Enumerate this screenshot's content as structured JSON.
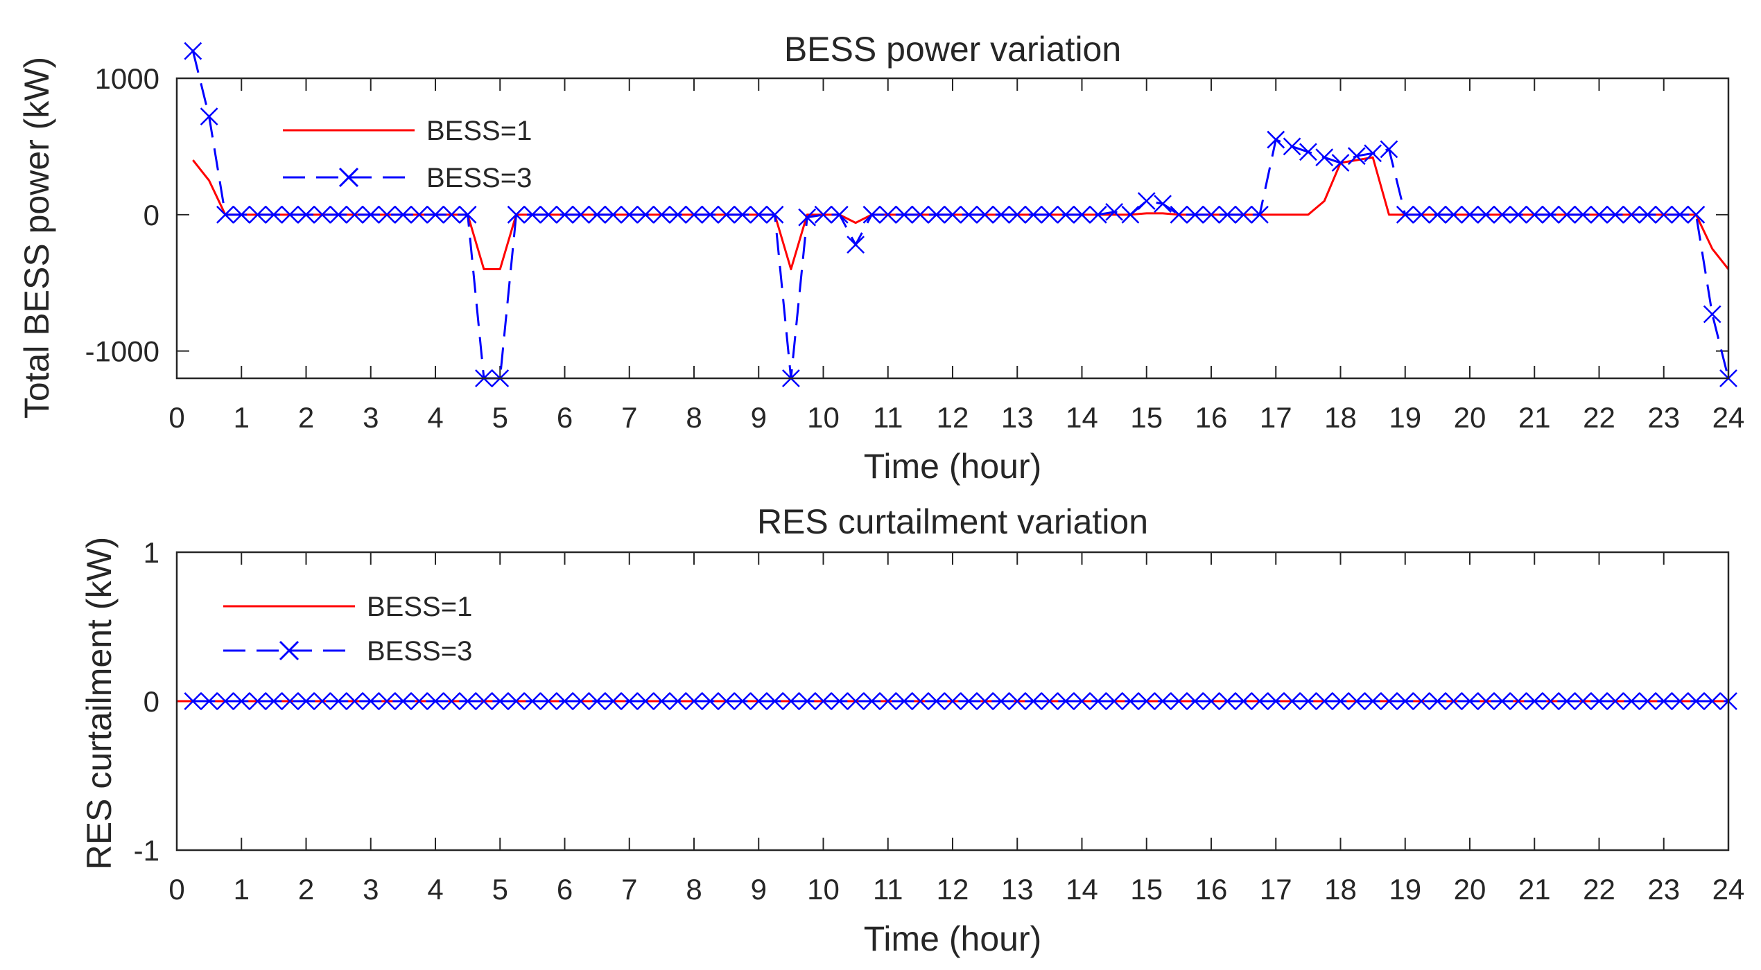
{
  "chart_data": [
    {
      "id": "bess",
      "type": "line",
      "title": "BESS power variation",
      "xlabel": "Time (hour)",
      "ylabel": "Total BESS power (kW)",
      "xlim": [
        0,
        24
      ],
      "ylim": [
        -1200,
        1000
      ],
      "xticks": [
        0,
        1,
        2,
        3,
        4,
        5,
        6,
        7,
        8,
        9,
        10,
        11,
        12,
        13,
        14,
        15,
        16,
        17,
        18,
        19,
        20,
        21,
        22,
        23,
        24
      ],
      "yticks": [
        -1000,
        0,
        1000
      ],
      "legend_position": "top-left",
      "grid": false,
      "series": [
        {
          "name": "BESS=1",
          "color": "#ff0000",
          "style": "solid",
          "marker": "none",
          "points": [
            [
              0.25,
              400
            ],
            [
              0.5,
              250
            ],
            [
              0.75,
              0
            ],
            [
              1,
              0
            ],
            [
              1.25,
              0
            ],
            [
              1.5,
              0
            ],
            [
              1.75,
              0
            ],
            [
              2,
              0
            ],
            [
              2.25,
              0
            ],
            [
              2.5,
              0
            ],
            [
              2.75,
              0
            ],
            [
              3,
              0
            ],
            [
              3.25,
              0
            ],
            [
              3.5,
              0
            ],
            [
              3.75,
              0
            ],
            [
              4,
              0
            ],
            [
              4.25,
              0
            ],
            [
              4.5,
              0
            ],
            [
              4.75,
              -400
            ],
            [
              5,
              -400
            ],
            [
              5.25,
              0
            ],
            [
              5.5,
              0
            ],
            [
              5.75,
              0
            ],
            [
              6,
              0
            ],
            [
              6.25,
              0
            ],
            [
              6.5,
              0
            ],
            [
              6.75,
              0
            ],
            [
              7,
              0
            ],
            [
              7.25,
              0
            ],
            [
              7.5,
              0
            ],
            [
              7.75,
              0
            ],
            [
              8,
              0
            ],
            [
              8.25,
              0
            ],
            [
              8.5,
              0
            ],
            [
              8.75,
              0
            ],
            [
              9,
              0
            ],
            [
              9.25,
              0
            ],
            [
              9.5,
              -400
            ],
            [
              9.75,
              0
            ],
            [
              10,
              0
            ],
            [
              10.25,
              0
            ],
            [
              10.5,
              -60
            ],
            [
              10.75,
              0
            ],
            [
              11,
              0
            ],
            [
              11.25,
              0
            ],
            [
              11.5,
              0
            ],
            [
              11.75,
              0
            ],
            [
              12,
              0
            ],
            [
              12.25,
              0
            ],
            [
              12.5,
              0
            ],
            [
              12.75,
              0
            ],
            [
              13,
              0
            ],
            [
              13.25,
              0
            ],
            [
              13.5,
              0
            ],
            [
              13.75,
              0
            ],
            [
              14,
              0
            ],
            [
              14.25,
              0
            ],
            [
              14.5,
              0
            ],
            [
              14.75,
              0
            ],
            [
              15,
              10
            ],
            [
              15.25,
              10
            ],
            [
              15.5,
              0
            ],
            [
              15.75,
              0
            ],
            [
              16,
              0
            ],
            [
              16.25,
              0
            ],
            [
              16.5,
              0
            ],
            [
              16.75,
              0
            ],
            [
              17,
              0
            ],
            [
              17.25,
              0
            ],
            [
              17.5,
              0
            ],
            [
              17.75,
              100
            ],
            [
              18,
              380
            ],
            [
              18.25,
              400
            ],
            [
              18.5,
              420
            ],
            [
              18.75,
              0
            ],
            [
              19,
              0
            ],
            [
              19.25,
              0
            ],
            [
              19.5,
              0
            ],
            [
              19.75,
              0
            ],
            [
              20,
              0
            ],
            [
              20.25,
              0
            ],
            [
              20.5,
              0
            ],
            [
              20.75,
              0
            ],
            [
              21,
              0
            ],
            [
              21.25,
              0
            ],
            [
              21.5,
              0
            ],
            [
              21.75,
              0
            ],
            [
              22,
              0
            ],
            [
              22.25,
              0
            ],
            [
              22.5,
              0
            ],
            [
              22.75,
              0
            ],
            [
              23,
              0
            ],
            [
              23.25,
              0
            ],
            [
              23.5,
              0
            ],
            [
              23.75,
              -250
            ],
            [
              24,
              -400
            ]
          ]
        },
        {
          "name": "BESS=3",
          "color": "#0000ff",
          "style": "dashed",
          "marker": "x",
          "points": [
            [
              0.25,
              1200
            ],
            [
              0.5,
              720
            ],
            [
              0.75,
              0
            ],
            [
              1,
              0
            ],
            [
              1.25,
              0
            ],
            [
              1.5,
              0
            ],
            [
              1.75,
              0
            ],
            [
              2,
              0
            ],
            [
              2.25,
              0
            ],
            [
              2.5,
              0
            ],
            [
              2.75,
              0
            ],
            [
              3,
              0
            ],
            [
              3.25,
              0
            ],
            [
              3.5,
              0
            ],
            [
              3.75,
              0
            ],
            [
              4,
              0
            ],
            [
              4.25,
              0
            ],
            [
              4.5,
              0
            ],
            [
              4.75,
              -1200
            ],
            [
              5,
              -1200
            ],
            [
              5.25,
              0
            ],
            [
              5.5,
              0
            ],
            [
              5.75,
              0
            ],
            [
              6,
              0
            ],
            [
              6.25,
              0
            ],
            [
              6.5,
              0
            ],
            [
              6.75,
              0
            ],
            [
              7,
              0
            ],
            [
              7.25,
              0
            ],
            [
              7.5,
              0
            ],
            [
              7.75,
              0
            ],
            [
              8,
              0
            ],
            [
              8.25,
              0
            ],
            [
              8.5,
              0
            ],
            [
              8.75,
              0
            ],
            [
              9,
              0
            ],
            [
              9.25,
              0
            ],
            [
              9.5,
              -1200
            ],
            [
              9.75,
              -20
            ],
            [
              10,
              0
            ],
            [
              10.25,
              0
            ],
            [
              10.5,
              -220
            ],
            [
              10.75,
              0
            ],
            [
              11,
              0
            ],
            [
              11.25,
              0
            ],
            [
              11.5,
              0
            ],
            [
              11.75,
              0
            ],
            [
              12,
              0
            ],
            [
              12.25,
              0
            ],
            [
              12.5,
              0
            ],
            [
              12.75,
              0
            ],
            [
              13,
              0
            ],
            [
              13.25,
              0
            ],
            [
              13.5,
              0
            ],
            [
              13.75,
              0
            ],
            [
              14,
              0
            ],
            [
              14.25,
              0
            ],
            [
              14.5,
              20
            ],
            [
              14.75,
              0
            ],
            [
              15,
              100
            ],
            [
              15.25,
              80
            ],
            [
              15.5,
              0
            ],
            [
              15.75,
              0
            ],
            [
              16,
              0
            ],
            [
              16.25,
              0
            ],
            [
              16.5,
              0
            ],
            [
              16.75,
              0
            ],
            [
              17,
              550
            ],
            [
              17.25,
              500
            ],
            [
              17.5,
              460
            ],
            [
              17.75,
              420
            ],
            [
              18,
              380
            ],
            [
              18.25,
              430
            ],
            [
              18.5,
              450
            ],
            [
              18.75,
              480
            ],
            [
              19,
              0
            ],
            [
              19.25,
              0
            ],
            [
              19.5,
              0
            ],
            [
              19.75,
              0
            ],
            [
              20,
              0
            ],
            [
              20.25,
              0
            ],
            [
              20.5,
              0
            ],
            [
              20.75,
              0
            ],
            [
              21,
              0
            ],
            [
              21.25,
              0
            ],
            [
              21.5,
              0
            ],
            [
              21.75,
              0
            ],
            [
              22,
              0
            ],
            [
              22.25,
              0
            ],
            [
              22.5,
              0
            ],
            [
              22.75,
              0
            ],
            [
              23,
              0
            ],
            [
              23.25,
              0
            ],
            [
              23.5,
              0
            ],
            [
              23.75,
              -730
            ],
            [
              24,
              -1200
            ]
          ]
        }
      ]
    },
    {
      "id": "res",
      "type": "line",
      "title": "RES curtailment variation",
      "xlabel": "Time (hour)",
      "ylabel": "RES curtailment (kW)",
      "xlim": [
        0,
        24
      ],
      "ylim": [
        -1,
        1
      ],
      "xticks": [
        0,
        1,
        2,
        3,
        4,
        5,
        6,
        7,
        8,
        9,
        10,
        11,
        12,
        13,
        14,
        15,
        16,
        17,
        18,
        19,
        20,
        21,
        22,
        23,
        24
      ],
      "yticks": [
        -1,
        0,
        1
      ],
      "legend_position": "top-left",
      "grid": false,
      "series": [
        {
          "name": "BESS=1",
          "color": "#ff0000",
          "style": "solid",
          "marker": "none",
          "points": [
            [
              0,
              0
            ],
            [
              24,
              0
            ]
          ]
        },
        {
          "name": "BESS=3",
          "color": "#0000ff",
          "style": "dashed",
          "marker": "x",
          "x_start": 0.25,
          "x_step": 0.25,
          "count": 96,
          "value": 0
        }
      ]
    }
  ]
}
